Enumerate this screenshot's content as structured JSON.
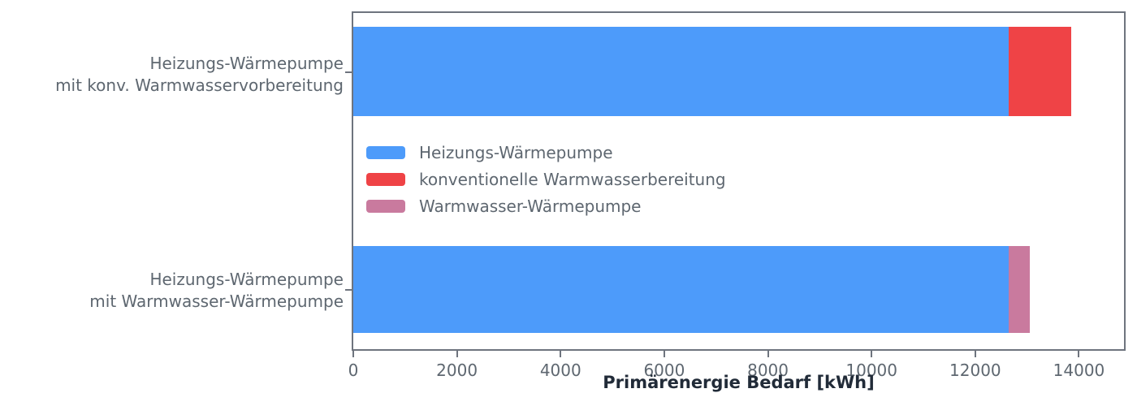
{
  "colors": {
    "background": "#FFFFFF",
    "spine": "#6E747E",
    "tick_text": "#5E6770",
    "xlabel_text": "#212B38"
  },
  "chart_data": {
    "type": "bar",
    "orientation": "horizontal",
    "stacked": true,
    "title": "",
    "xlabel": "Primärenergie Bedarf [kWh]",
    "ylabel": "",
    "categories": [
      "Heizungs-Wärmepumpe\nmit konv. Warmwasservorbereitung",
      "Heizungs-Wärmepumpe\nmit Warmwasser-Wärmepumpe"
    ],
    "series": [
      {
        "name": "Heizungs-Wärmepumpe",
        "color": "#4D9BFA",
        "values": [
          12640,
          12640
        ]
      },
      {
        "name": "konventionelle Warmwasserbereitung",
        "color": "#EF4346",
        "values": [
          1210,
          0
        ]
      },
      {
        "name": "Warmwasser-Wärmepumpe",
        "color": "#C97A9E",
        "values": [
          0,
          420
        ]
      }
    ],
    "xticks": [
      0,
      2000,
      4000,
      6000,
      8000,
      10000,
      12000,
      14000
    ],
    "xlim": [
      0,
      14870
    ],
    "grid": false,
    "legend_position": "center-left-inside"
  }
}
